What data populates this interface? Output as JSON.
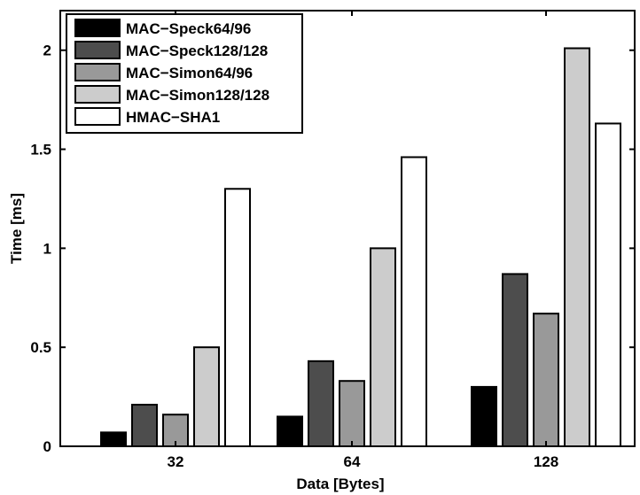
{
  "chart_data": {
    "type": "bar",
    "categories": [
      "32",
      "64",
      "128"
    ],
    "series": [
      {
        "name": "MAC−Speck64/96",
        "color": "#000000",
        "values": [
          0.07,
          0.15,
          0.3
        ]
      },
      {
        "name": "MAC−Speck128/128",
        "color": "#4d4d4d",
        "values": [
          0.21,
          0.43,
          0.87
        ]
      },
      {
        "name": "MAC−Simon64/96",
        "color": "#999999",
        "values": [
          0.16,
          0.33,
          0.67
        ]
      },
      {
        "name": "MAC−Simon128/128",
        "color": "#cccccc",
        "values": [
          0.5,
          1.0,
          2.01
        ]
      },
      {
        "name": "HMAC−SHA1",
        "color": "#ffffff",
        "values": [
          1.3,
          1.46,
          1.63
        ]
      }
    ],
    "title": "",
    "xlabel": "Data [Bytes]",
    "ylabel": "Time [ms]",
    "ylim": [
      0,
      2.2
    ],
    "yticks": [
      0,
      0.5,
      1,
      1.5,
      2
    ],
    "ytick_labels": [
      "0",
      "0.5",
      "1",
      "1.5",
      "2"
    ],
    "grid": false,
    "legend_position": "top-left"
  }
}
